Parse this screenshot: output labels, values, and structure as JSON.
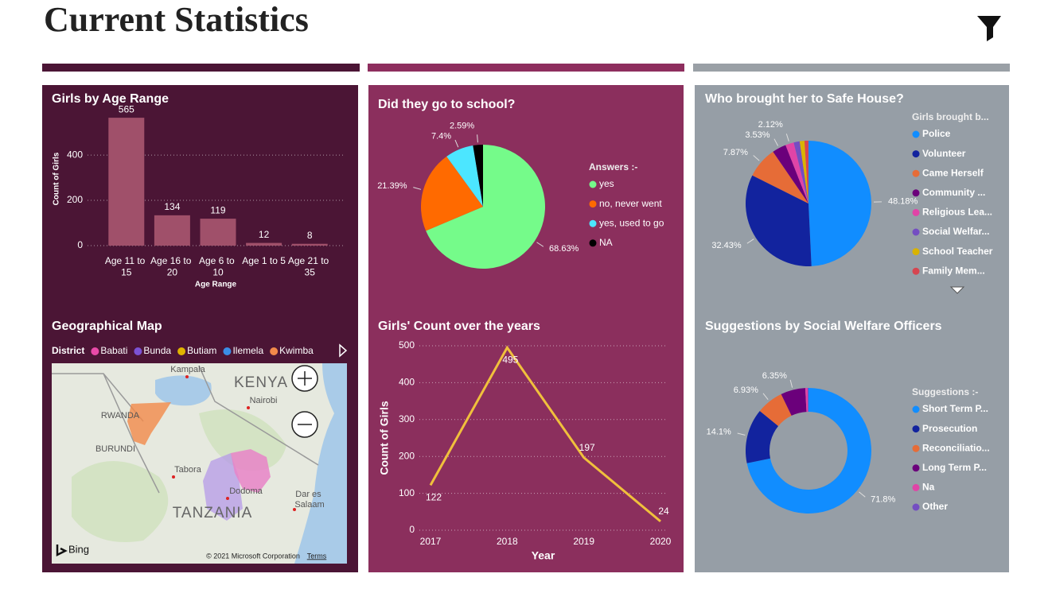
{
  "title": "Current Statistics",
  "chart_data": [
    {
      "type": "bar",
      "title": "Girls by Age Range",
      "x_label": "Age Range",
      "y_label": "Count of Girls",
      "categories": [
        "Age 11 to 15",
        "Age 16 to 20",
        "Age 6 to 10",
        "Age 1 to 5",
        "Age 21 to 35"
      ],
      "values": [
        565,
        134,
        119,
        12,
        8
      ],
      "color": "#a0506a",
      "ylim": [
        0,
        590
      ],
      "yticks": [
        0,
        200,
        400
      ],
      "grid": true
    },
    {
      "type": "pie",
      "title": "Did they go to school?",
      "legend_title": "Answers :-",
      "categories": [
        "yes",
        "no, never went",
        "yes, used to go",
        "NA"
      ],
      "values": [
        68.63,
        21.39,
        7.4,
        2.59
      ],
      "value_labels": [
        "68.63%",
        "21.39%",
        "7.4%",
        "2.59%"
      ],
      "colors": [
        "#75fb8a",
        "#ff6a00",
        "#4ce6ff",
        "#000000"
      ]
    },
    {
      "type": "pie",
      "title": "Who brought her to Safe House?",
      "legend_title": "Girls brought b...",
      "categories": [
        "Police",
        "Volunteer",
        "Came Herself",
        "Community ...",
        "Religious Lea...",
        "Social Welfar...",
        "School Teacher",
        "Family Mem..."
      ],
      "values": [
        48.18,
        32.43,
        7.87,
        3.53,
        2.12,
        1.5,
        1.2,
        1.0
      ],
      "value_labels": [
        "48.18%",
        "32.43%",
        "7.87%",
        "3.53%",
        "2.12%",
        null,
        null,
        null
      ],
      "colors": [
        "#118dff",
        "#12239e",
        "#e66c37",
        "#6b007b",
        "#e044a7",
        "#744ec2",
        "#d9b300",
        "#d64550"
      ]
    },
    {
      "type": "map",
      "title": "Geographical Map",
      "legend_title": "District",
      "categories": [
        "Babati",
        "Bunda",
        "Butiam",
        "Ilemela",
        "Kwimba"
      ],
      "colors": [
        "#e84aa8",
        "#7b52d4",
        "#e0b400",
        "#3a8ee6",
        "#f28a4a"
      ],
      "places": [
        "Kampala",
        "KENYA",
        "Nairobi",
        "RWANDA",
        "BURUNDI",
        "Tabora",
        "Dodoma",
        "TANZANIA",
        "Dar es Salaam"
      ],
      "provider": "Bing",
      "attribution": "© 2021 Microsoft Corporation",
      "terms": "Terms"
    },
    {
      "type": "line",
      "title": "Girls' Count over the years",
      "x_label": "Year",
      "y_label": "Count of Girls",
      "x": [
        2017,
        2018,
        2019,
        2020
      ],
      "values": [
        122,
        495,
        197,
        24
      ],
      "color": "#f0c03c",
      "xlim": [
        2017,
        2020
      ],
      "xticks": [
        2017,
        2018,
        2019,
        2020
      ],
      "ylim": [
        0,
        500
      ],
      "yticks": [
        0,
        100,
        200,
        300,
        400,
        500
      ],
      "grid": true
    },
    {
      "type": "donut",
      "title": "Suggestions by Social Welfare Officers",
      "legend_title": "Suggestions :-",
      "categories": [
        "Short Term P...",
        "Prosecution",
        "Reconciliatio...",
        "Long Term P...",
        "Na",
        "Other"
      ],
      "values": [
        71.8,
        14.1,
        6.93,
        6.35,
        0.6,
        0.22
      ],
      "value_labels": [
        "71.8%",
        "14.1%",
        "6.93%",
        "6.35%",
        null,
        null
      ],
      "colors": [
        "#118dff",
        "#12239e",
        "#e66c37",
        "#6b007b",
        "#e044a7",
        "#744ec2"
      ]
    }
  ]
}
